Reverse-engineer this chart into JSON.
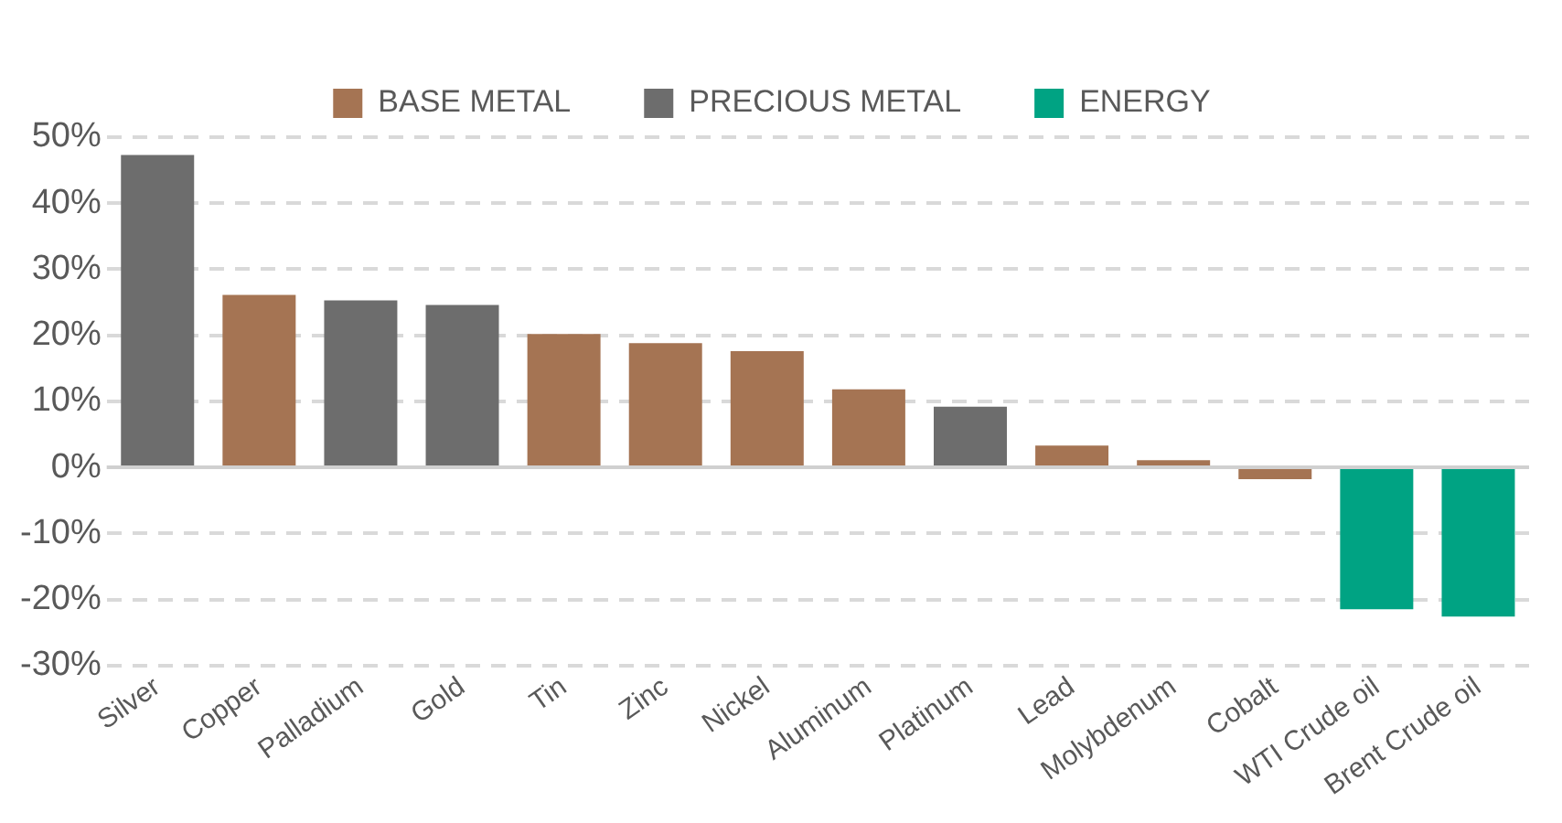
{
  "chart_data": {
    "type": "bar",
    "categories": [
      "Silver",
      "Copper",
      "Palladium",
      "Gold",
      "Tin",
      "Zinc",
      "Nickel",
      "Aluminum",
      "Platinum",
      "Lead",
      "Molybdenum",
      "Cobalt",
      "WTI Crude oil",
      "Brent Crude oil"
    ],
    "series": [
      {
        "name": "BASE METAL",
        "color": "#a57453",
        "values": [
          null,
          26.1,
          null,
          null,
          20.2,
          18.8,
          17.6,
          11.8,
          null,
          3.3,
          1.1,
          -1.8,
          null,
          null
        ]
      },
      {
        "name": "PRECIOUS METAL",
        "color": "#6d6d6d",
        "values": [
          47.3,
          null,
          25.3,
          24.6,
          null,
          null,
          null,
          null,
          9.2,
          null,
          null,
          null,
          null,
          null
        ]
      },
      {
        "name": "ENERGY",
        "color": "#00a383",
        "values": [
          null,
          null,
          null,
          null,
          null,
          null,
          null,
          null,
          null,
          null,
          null,
          null,
          -21.5,
          -22.6
        ]
      }
    ],
    "ylim": [
      -30,
      50
    ],
    "yticks": [
      {
        "value": -30,
        "label": "-30%"
      },
      {
        "value": -20,
        "label": "-20%"
      },
      {
        "value": -10,
        "label": "-10%"
      },
      {
        "value": 0,
        "label": "0%"
      },
      {
        "value": 10,
        "label": "10%"
      },
      {
        "value": 20,
        "label": "20%"
      },
      {
        "value": 30,
        "label": "30%"
      },
      {
        "value": 40,
        "label": "40%"
      },
      {
        "value": 50,
        "label": "50%"
      }
    ],
    "grid": "y",
    "legend": "top"
  }
}
